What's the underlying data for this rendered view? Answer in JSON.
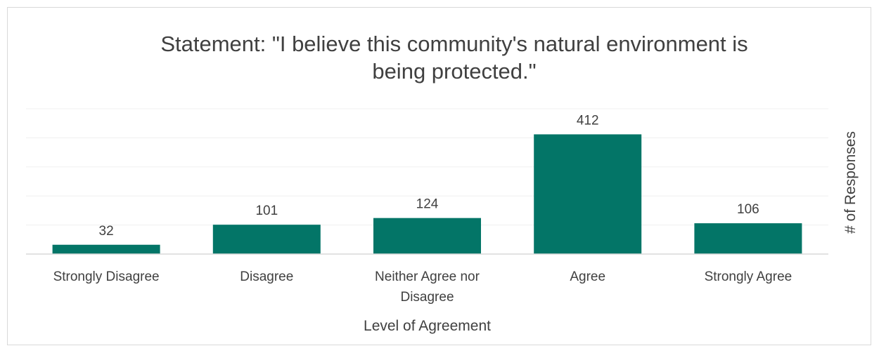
{
  "chart_data": {
    "type": "bar",
    "title_lines": [
      "Statement: \"I believe this community's natural environment is",
      "being protected.\""
    ],
    "categories": [
      [
        "Strongly Disagree"
      ],
      [
        "Disagree"
      ],
      [
        "Neither Agree nor",
        "Disagree"
      ],
      [
        "Agree"
      ],
      [
        "Strongly Agree"
      ]
    ],
    "values": [
      32,
      101,
      124,
      412,
      106
    ],
    "xlabel": "Level of Agreement",
    "ylabel": "# of Responses",
    "ylim": [
      0,
      500
    ],
    "grid": true,
    "bar_color": "#037567",
    "grid_color": "#f0f0f0",
    "axis_color": "#d9d9d9"
  }
}
